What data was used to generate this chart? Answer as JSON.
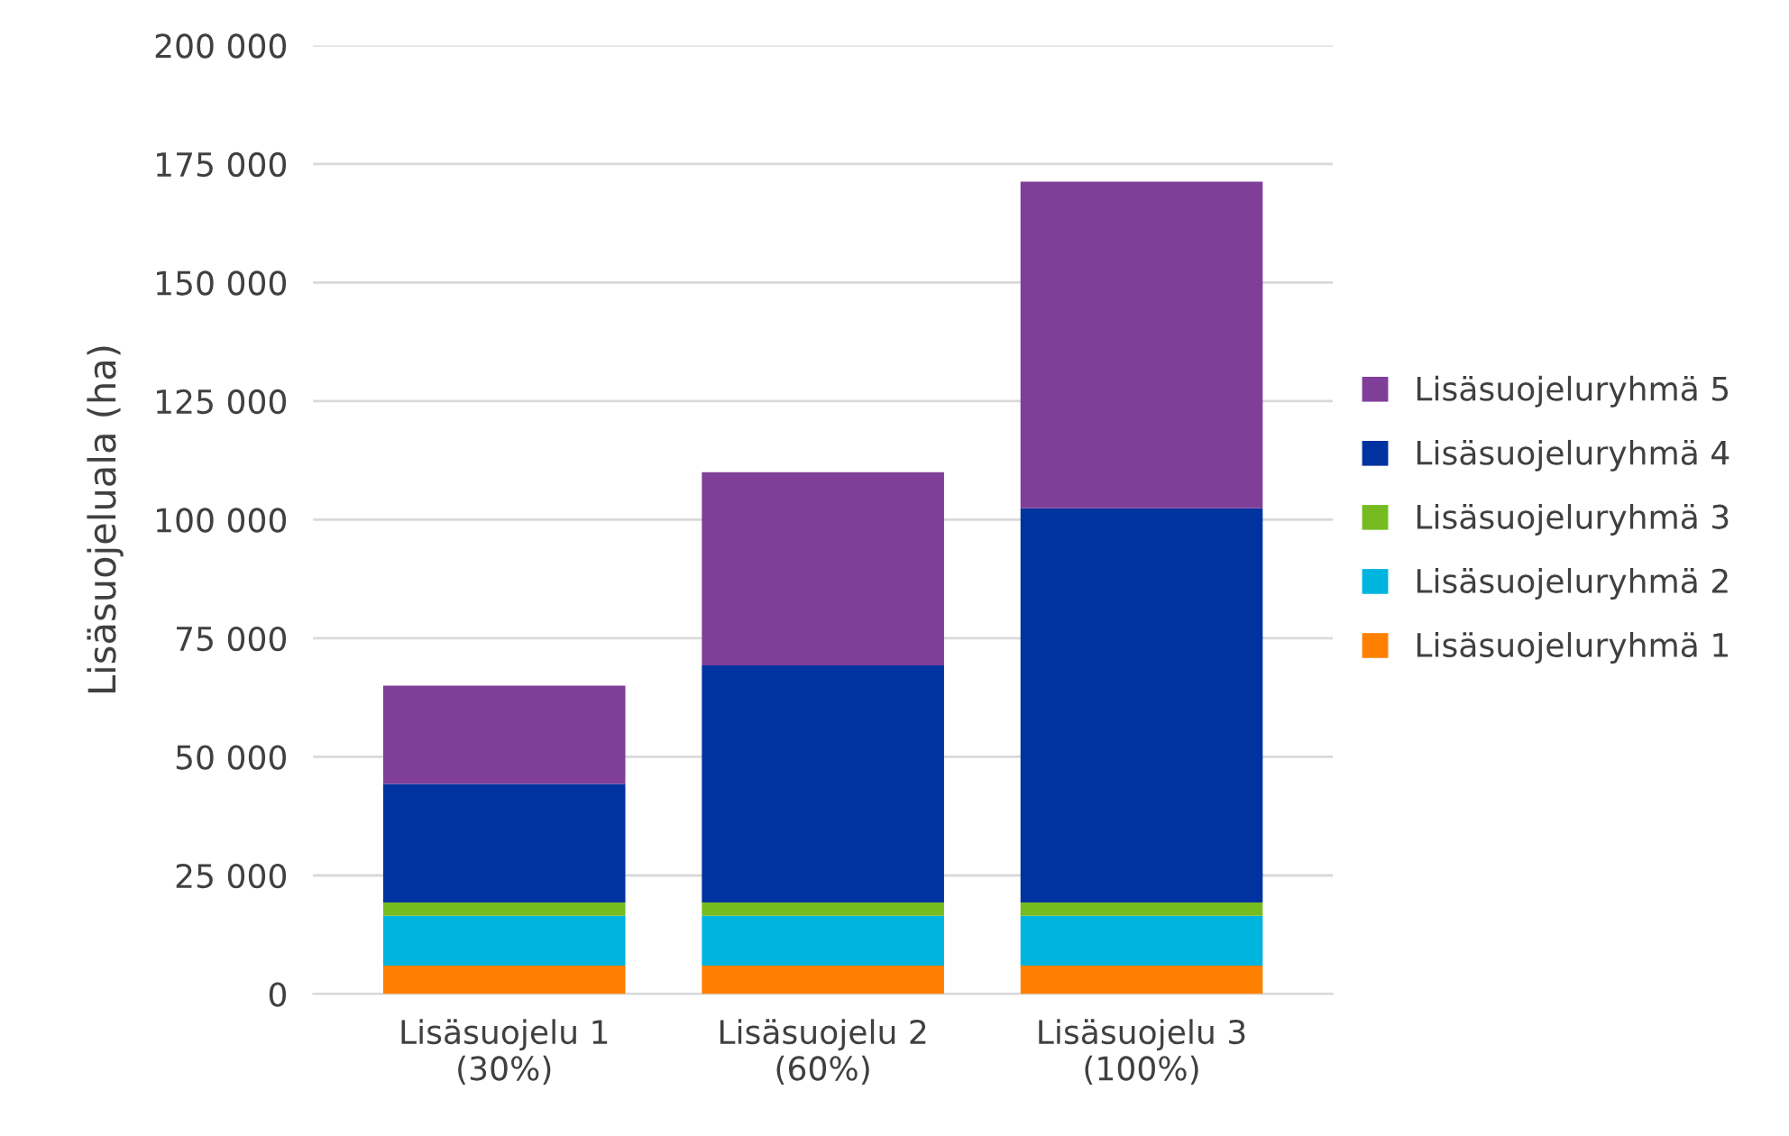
{
  "chart_data": {
    "type": "bar",
    "stacked": true,
    "ylabel": "Lisäsuojeluala (ha)",
    "categories": [
      "Lisäsuojelu 1\n(30%)",
      "Lisäsuojelu 2\n(60%)",
      "Lisäsuojelu 3\n(100%)"
    ],
    "series": [
      {
        "name": "Lisäsuojeluryhmä 1",
        "color": "#ff8000",
        "values": [
          6000,
          6000,
          6000
        ]
      },
      {
        "name": "Lisäsuojeluryhmä 2",
        "color": "#00b4e0",
        "values": [
          10500,
          10500,
          10500
        ]
      },
      {
        "name": "Lisäsuojeluryhmä 3",
        "color": "#76bc21",
        "values": [
          2800,
          2800,
          2800
        ]
      },
      {
        "name": "Lisäsuojeluryhmä 4",
        "color": "#0033a0",
        "values": [
          25000,
          50000,
          83100
        ]
      },
      {
        "name": "Lisäsuojeluryhmä 5",
        "color": "#7f3f98",
        "values": [
          20700,
          40700,
          68900
        ]
      }
    ],
    "ylim": [
      0,
      200000
    ],
    "yticks": [
      {
        "value": 0,
        "label": "0"
      },
      {
        "value": 25000,
        "label": "25 000"
      },
      {
        "value": 50000,
        "label": "50 000"
      },
      {
        "value": 75000,
        "label": "75 000"
      },
      {
        "value": 100000,
        "label": "100 000"
      },
      {
        "value": 125000,
        "label": "125 000"
      },
      {
        "value": 150000,
        "label": "150 000"
      },
      {
        "value": 175000,
        "label": "175 000"
      },
      {
        "value": 200000,
        "label": "200 000"
      }
    ],
    "grid": "y",
    "legend": "right"
  }
}
